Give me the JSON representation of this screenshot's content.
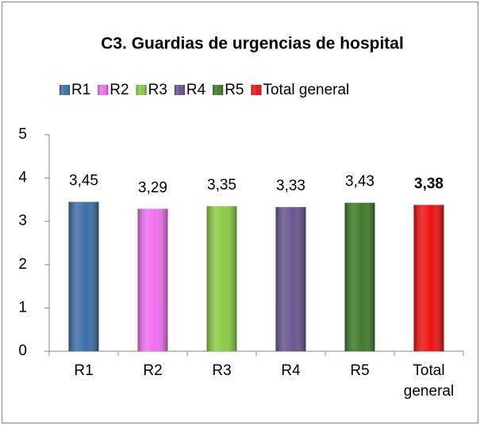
{
  "chart_data": {
    "type": "bar",
    "title": "C3. Guardias de urgencias de hospital",
    "categories": [
      "R1",
      "R2",
      "R3",
      "R4",
      "R5",
      "Total general"
    ],
    "values": [
      3.45,
      3.29,
      3.35,
      3.33,
      3.43,
      3.38
    ],
    "value_labels": [
      "3,45",
      "3,29",
      "3,35",
      "3,33",
      "3,43",
      "3,38"
    ],
    "colors": [
      "#3d6ea8",
      "#f070f0",
      "#8ccb45",
      "#6a5590",
      "#3e7a2c",
      "#ee1111"
    ],
    "ylim": [
      0,
      5
    ],
    "yticks": [
      0,
      1,
      2,
      3,
      4,
      5
    ],
    "legend": "top"
  }
}
